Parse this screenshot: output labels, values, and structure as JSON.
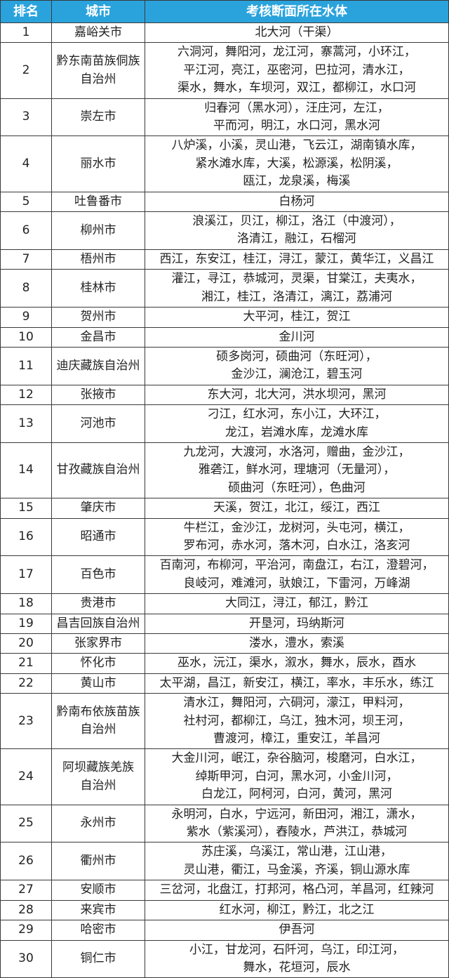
{
  "table": {
    "header": [
      "排名",
      "城市",
      "考核断面所在水体"
    ],
    "rows": [
      [
        1,
        [
          "嘉峪关市"
        ],
        [
          "北大河（干渠）"
        ]
      ],
      [
        2,
        [
          "黔东南苗族侗族",
          "自治州"
        ],
        [
          "六洞河，舞阳河，龙江河，寨蒿河，小环江，",
          "平江河，亮江，巫密河，巴拉河，清水江，",
          "渠水，舞水，车坝河，双江，都柳江，水口河"
        ]
      ],
      [
        3,
        [
          "崇左市"
        ],
        [
          "归春河（黑水河），汪庄河，左江，",
          "平而河，明江，水口河，黑水河"
        ]
      ],
      [
        4,
        [
          "丽水市"
        ],
        [
          "八炉溪，小溪，灵山港，飞云江，湖南镇水库，",
          "紧水滩水库，大溪，松源溪，松阴溪，",
          "瓯江，龙泉溪，梅溪"
        ]
      ],
      [
        5,
        [
          "吐鲁番市"
        ],
        [
          "白杨河"
        ]
      ],
      [
        6,
        [
          "柳州市"
        ],
        [
          "浪溪江，贝江，柳江，洛江（中渡河），",
          "洛清江，融江，石榴河"
        ]
      ],
      [
        7,
        [
          "梧州市"
        ],
        [
          "西江，东安江，桂江，浔江，蒙江，黄华江，义昌江"
        ]
      ],
      [
        8,
        [
          "桂林市"
        ],
        [
          "灌江，寻江，恭城河，灵渠，甘棠江，夫夷水，",
          "湘江，桂江，洛清江，漓江，荔浦河"
        ]
      ],
      [
        9,
        [
          "贺州市"
        ],
        [
          "大平河，桂江，贺江"
        ]
      ],
      [
        10,
        [
          "金昌市"
        ],
        [
          "金川河"
        ]
      ],
      [
        11,
        [
          "迪庆藏族自治州"
        ],
        [
          "硕多岗河，硕曲河（东旺河），",
          "金沙江，澜沧江，碧玉河"
        ]
      ],
      [
        12,
        [
          "张掖市"
        ],
        [
          "东大河，北大河，洪水坝河，黑河"
        ]
      ],
      [
        13,
        [
          "河池市"
        ],
        [
          "刁江，红水河，东小江，大环江，",
          "龙江，岩滩水库，龙滩水库"
        ]
      ],
      [
        14,
        [
          "甘孜藏族自治州"
        ],
        [
          "九龙河，大渡河，水洛河，赠曲，金沙江，",
          "雅砻江，鲜水河，理塘河（无量河），",
          "硕曲河（东旺河），色曲河"
        ]
      ],
      [
        15,
        [
          "肇庆市"
        ],
        [
          "天溪，贺江，北江，绥江，西江"
        ]
      ],
      [
        16,
        [
          "昭通市"
        ],
        [
          "牛栏江，金沙江，龙树河，头屯河，横江，",
          "罗布河，赤水河，落木河，白水江，洛亥河"
        ]
      ],
      [
        17,
        [
          "百色市"
        ],
        [
          "百南河，布柳河，平治河，南盘江，右江，澄碧河，",
          "良岐河，难滩河，驮娘江，下雷河，万峰湖"
        ]
      ],
      [
        18,
        [
          "贵港市"
        ],
        [
          "大同江，浔江，郁江，黔江"
        ]
      ],
      [
        19,
        [
          "昌吉回族自治州"
        ],
        [
          "开垦河，玛纳斯河"
        ]
      ],
      [
        20,
        [
          "张家界市"
        ],
        [
          "溇水，澧水，索溪"
        ]
      ],
      [
        21,
        [
          "怀化市"
        ],
        [
          "巫水，沅江，渠水，溆水，舞水，辰水，酉水"
        ]
      ],
      [
        22,
        [
          "黄山市"
        ],
        [
          "太平湖，昌江，新安江，横江，率水，丰乐水，练江"
        ]
      ],
      [
        23,
        [
          "黔南布依族苗族",
          "自治州"
        ],
        [
          "清水江，舞阳河，六硐河，濛江，甲料河，",
          "社村河，都柳江，乌江，独木河，坝王河，",
          "曹渡河，樟江，重安江，羊昌河"
        ]
      ],
      [
        24,
        [
          "阿坝藏族羌族",
          "自治州"
        ],
        [
          "大金川河，岷江，杂谷脑河，梭磨河，白水江，",
          "绰斯甲河，白河，黑水河，小金川河，",
          "白龙江，阿柯河，白河，黄河，黑河"
        ]
      ],
      [
        25,
        [
          "永州市"
        ],
        [
          "永明河，白水，宁远河，新田河，湘江，潇水，",
          "紫水（紫溪河），舂陵水，芦洪江，恭城河"
        ]
      ],
      [
        26,
        [
          "衢州市"
        ],
        [
          "苏庄溪，乌溪江，常山港，江山港，",
          "灵山港，衢江，马金溪，齐溪，铜山源水库"
        ]
      ],
      [
        27,
        [
          "安顺市"
        ],
        [
          "三岔河，北盘江，打邦河，格凸河，羊昌河，红辣河"
        ]
      ],
      [
        28,
        [
          "来宾市"
        ],
        [
          "红水河，柳江，黔江，北之江"
        ]
      ],
      [
        29,
        [
          "哈密市"
        ],
        [
          "伊吾河"
        ]
      ],
      [
        30,
        [
          "铜仁市"
        ],
        [
          "小江，甘龙河，石阡河，乌江，印江河，",
          "舞水，花垣河，辰水"
        ]
      ]
    ]
  }
}
